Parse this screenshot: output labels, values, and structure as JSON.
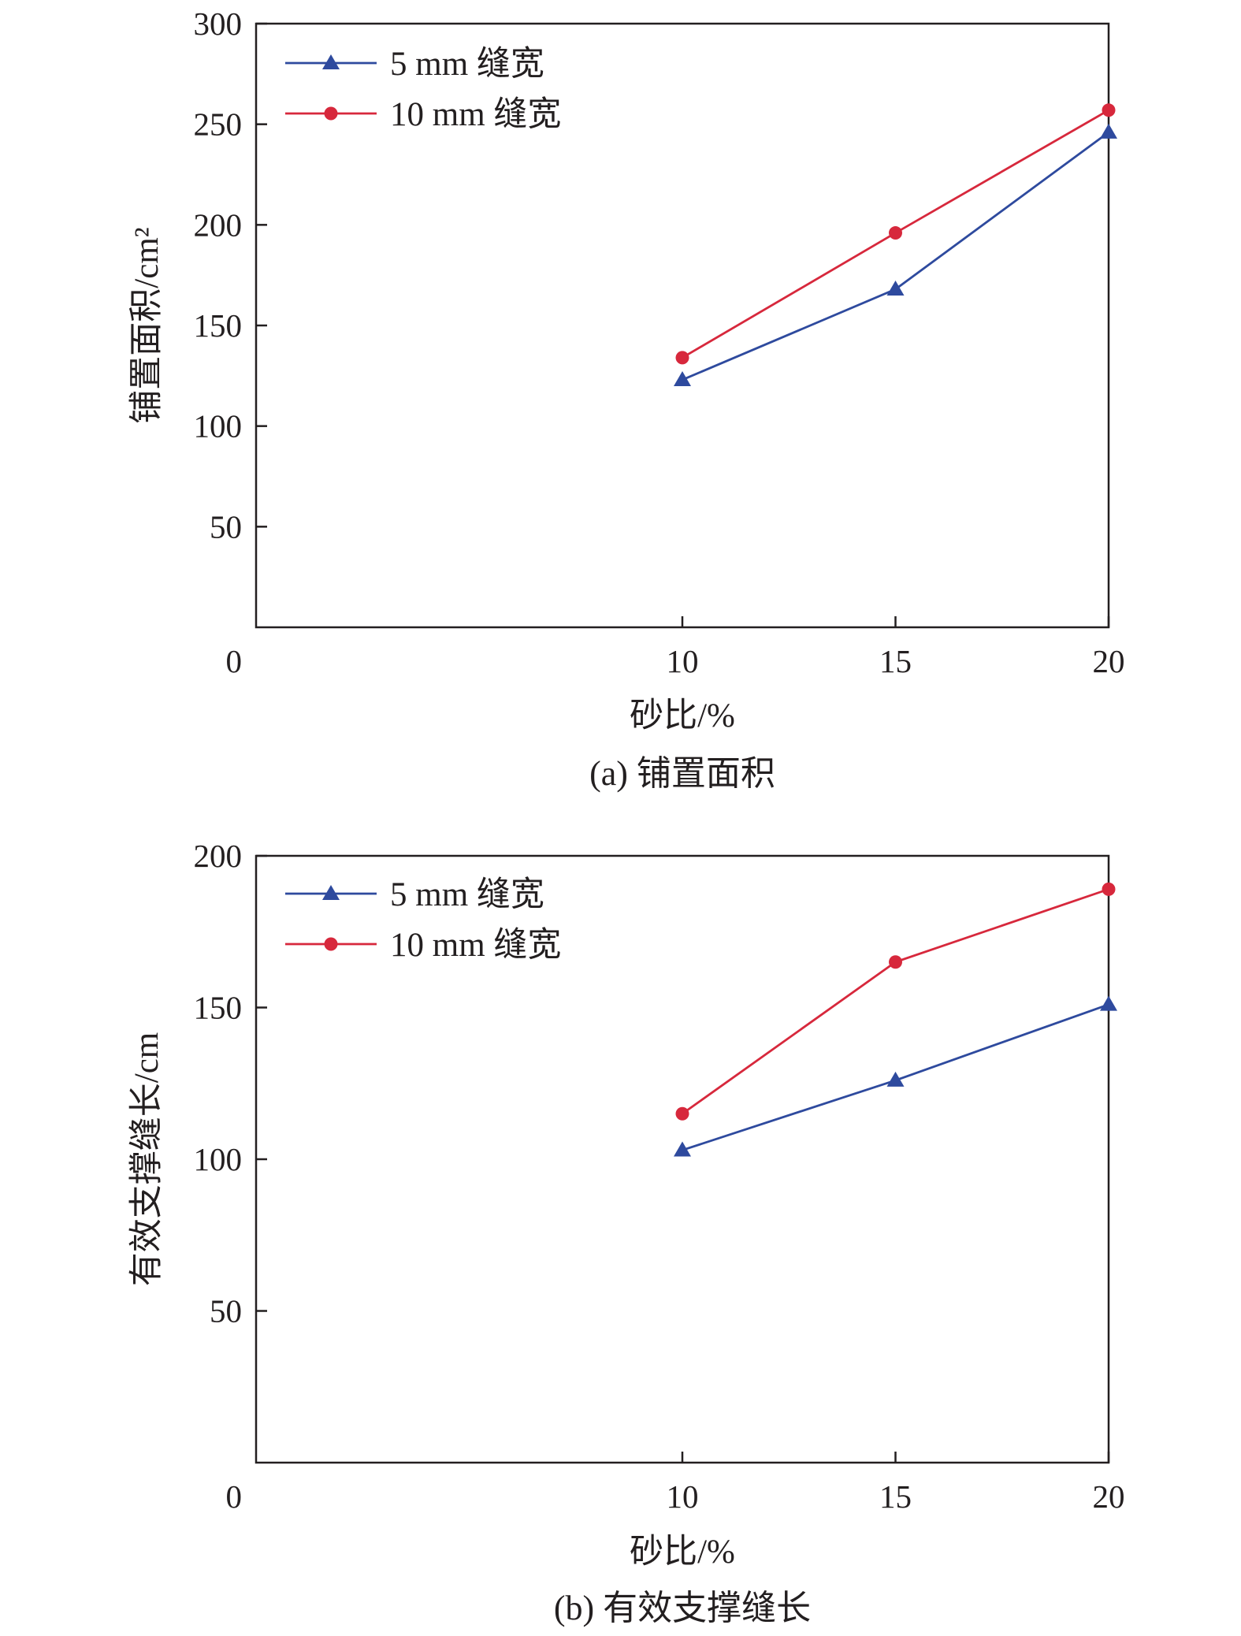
{
  "chart_data": [
    {
      "type": "line",
      "caption": "(a) 铺置面积",
      "xlabel": "砂比/%",
      "ylabel": "铺置面积/cm²",
      "xlim": [
        0,
        20
      ],
      "ylim": [
        0,
        300
      ],
      "x_ticks": [
        0,
        10,
        15,
        20
      ],
      "y_ticks": [
        0,
        50,
        100,
        150,
        200,
        250,
        300
      ],
      "grid": false,
      "legend_position": "top-left",
      "x": [
        10,
        15,
        20
      ],
      "series": [
        {
          "name": "5 mm 缝宽",
          "values": [
            123,
            168,
            246
          ],
          "color": "#2e4a9e",
          "marker": "triangle"
        },
        {
          "name": "10 mm 缝宽",
          "values": [
            134,
            196,
            257
          ],
          "color": "#d7283c",
          "marker": "circle"
        }
      ]
    },
    {
      "type": "line",
      "caption": "(b) 有效支撑缝长",
      "xlabel": "砂比/%",
      "ylabel": "有效支撑缝长/cm",
      "xlim": [
        0,
        20
      ],
      "ylim": [
        0,
        200
      ],
      "x_ticks": [
        0,
        10,
        15,
        20
      ],
      "y_ticks": [
        0,
        50,
        100,
        150,
        200
      ],
      "grid": false,
      "legend_position": "top-left",
      "x": [
        10,
        15,
        20
      ],
      "series": [
        {
          "name": "5 mm 缝宽",
          "values": [
            103,
            126,
            151
          ],
          "color": "#2e4a9e",
          "marker": "triangle"
        },
        {
          "name": "10 mm 缝宽",
          "values": [
            115,
            165,
            189
          ],
          "color": "#d7283c",
          "marker": "circle"
        }
      ]
    }
  ]
}
